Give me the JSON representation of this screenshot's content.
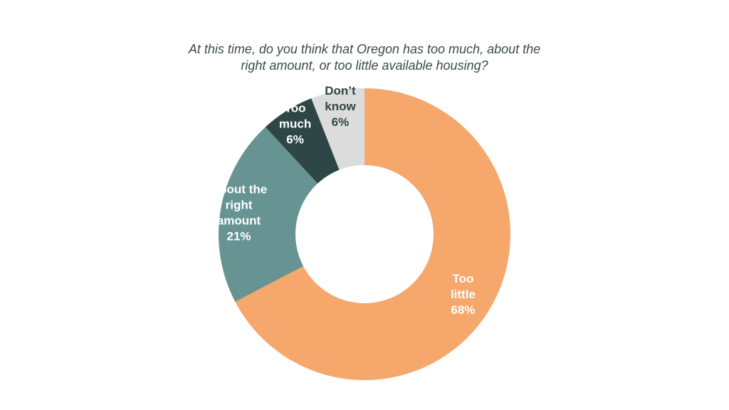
{
  "chart_data": {
    "type": "pie",
    "variant": "donut",
    "title_lines": [
      "At this time, do you think that Oregon has too much, about the",
      "right amount, or too little available housing?"
    ],
    "slices": [
      {
        "label_lines": [
          "Too",
          "little",
          "68%"
        ],
        "label": "Too little",
        "value": 68,
        "color": "#f5a76c",
        "text_color": "#ffffff"
      },
      {
        "label_lines": [
          "About the",
          "right",
          "amount",
          "21%"
        ],
        "label": "About the right amount",
        "value": 21,
        "color": "#679492",
        "text_color": "#ffffff"
      },
      {
        "label_lines": [
          "Too",
          "much",
          "6%"
        ],
        "label": "Too much",
        "value": 6,
        "color": "#2f4646",
        "text_color": "#ffffff"
      },
      {
        "label_lines": [
          "Don’t",
          "know",
          "6%"
        ],
        "label": "Don’t know",
        "value": 6,
        "color": "#dcdcdc",
        "text_color": "#2f4646"
      }
    ],
    "start": "top",
    "direction": "clockwise",
    "legend": "none"
  }
}
